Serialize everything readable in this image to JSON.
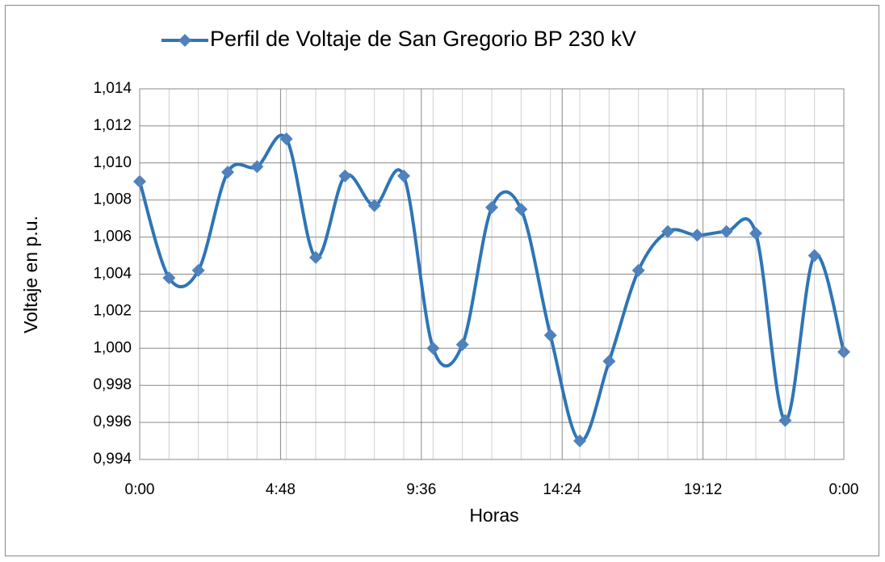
{
  "chart_data": {
    "type": "line",
    "x_label": "Horas",
    "y_label": "Voltaje en p.u.",
    "x": [
      0,
      1,
      2,
      3,
      4,
      5,
      6,
      7,
      8,
      9,
      10,
      11,
      12,
      13,
      14,
      15,
      16,
      17,
      18,
      19,
      20,
      21,
      22,
      23,
      24
    ],
    "series": [
      {
        "name": "Perfil de Voltaje de San Gregorio BP 230 kV",
        "color": "#2e75b6",
        "marker_color": "#4f81bd",
        "values": [
          1.009,
          1.0038,
          1.0042,
          1.0095,
          1.0098,
          1.0113,
          1.0049,
          1.0093,
          1.0077,
          1.0093,
          1.0,
          1.0002,
          1.0076,
          1.0075,
          1.0007,
          0.995,
          0.9993,
          1.0042,
          1.0063,
          1.0061,
          1.0063,
          1.0062,
          0.9961,
          1.005,
          0.9998
        ]
      }
    ],
    "xlim": [
      0,
      24
    ],
    "xticks": [
      {
        "value": 0,
        "label": "0:00"
      },
      {
        "value": 4.8,
        "label": "4:48"
      },
      {
        "value": 9.6,
        "label": "9:36"
      },
      {
        "value": 14.4,
        "label": "14:24"
      },
      {
        "value": 19.2,
        "label": "19:12"
      },
      {
        "value": 24,
        "label": "0:00"
      }
    ],
    "ylim": [
      0.994,
      1.014
    ],
    "yticks": [
      {
        "value": 0.994,
        "label": "0,994"
      },
      {
        "value": 0.996,
        "label": "0,996"
      },
      {
        "value": 0.998,
        "label": "0,998"
      },
      {
        "value": 1.0,
        "label": "1,000"
      },
      {
        "value": 1.002,
        "label": "1,002"
      },
      {
        "value": 1.004,
        "label": "1,004"
      },
      {
        "value": 1.006,
        "label": "1,006"
      },
      {
        "value": 1.008,
        "label": "1,008"
      },
      {
        "value": 1.01,
        "label": "1,010"
      },
      {
        "value": 1.012,
        "label": "1,012"
      },
      {
        "value": 1.014,
        "label": "1,014"
      }
    ],
    "grid": true,
    "smooth": true,
    "legend": "top"
  }
}
